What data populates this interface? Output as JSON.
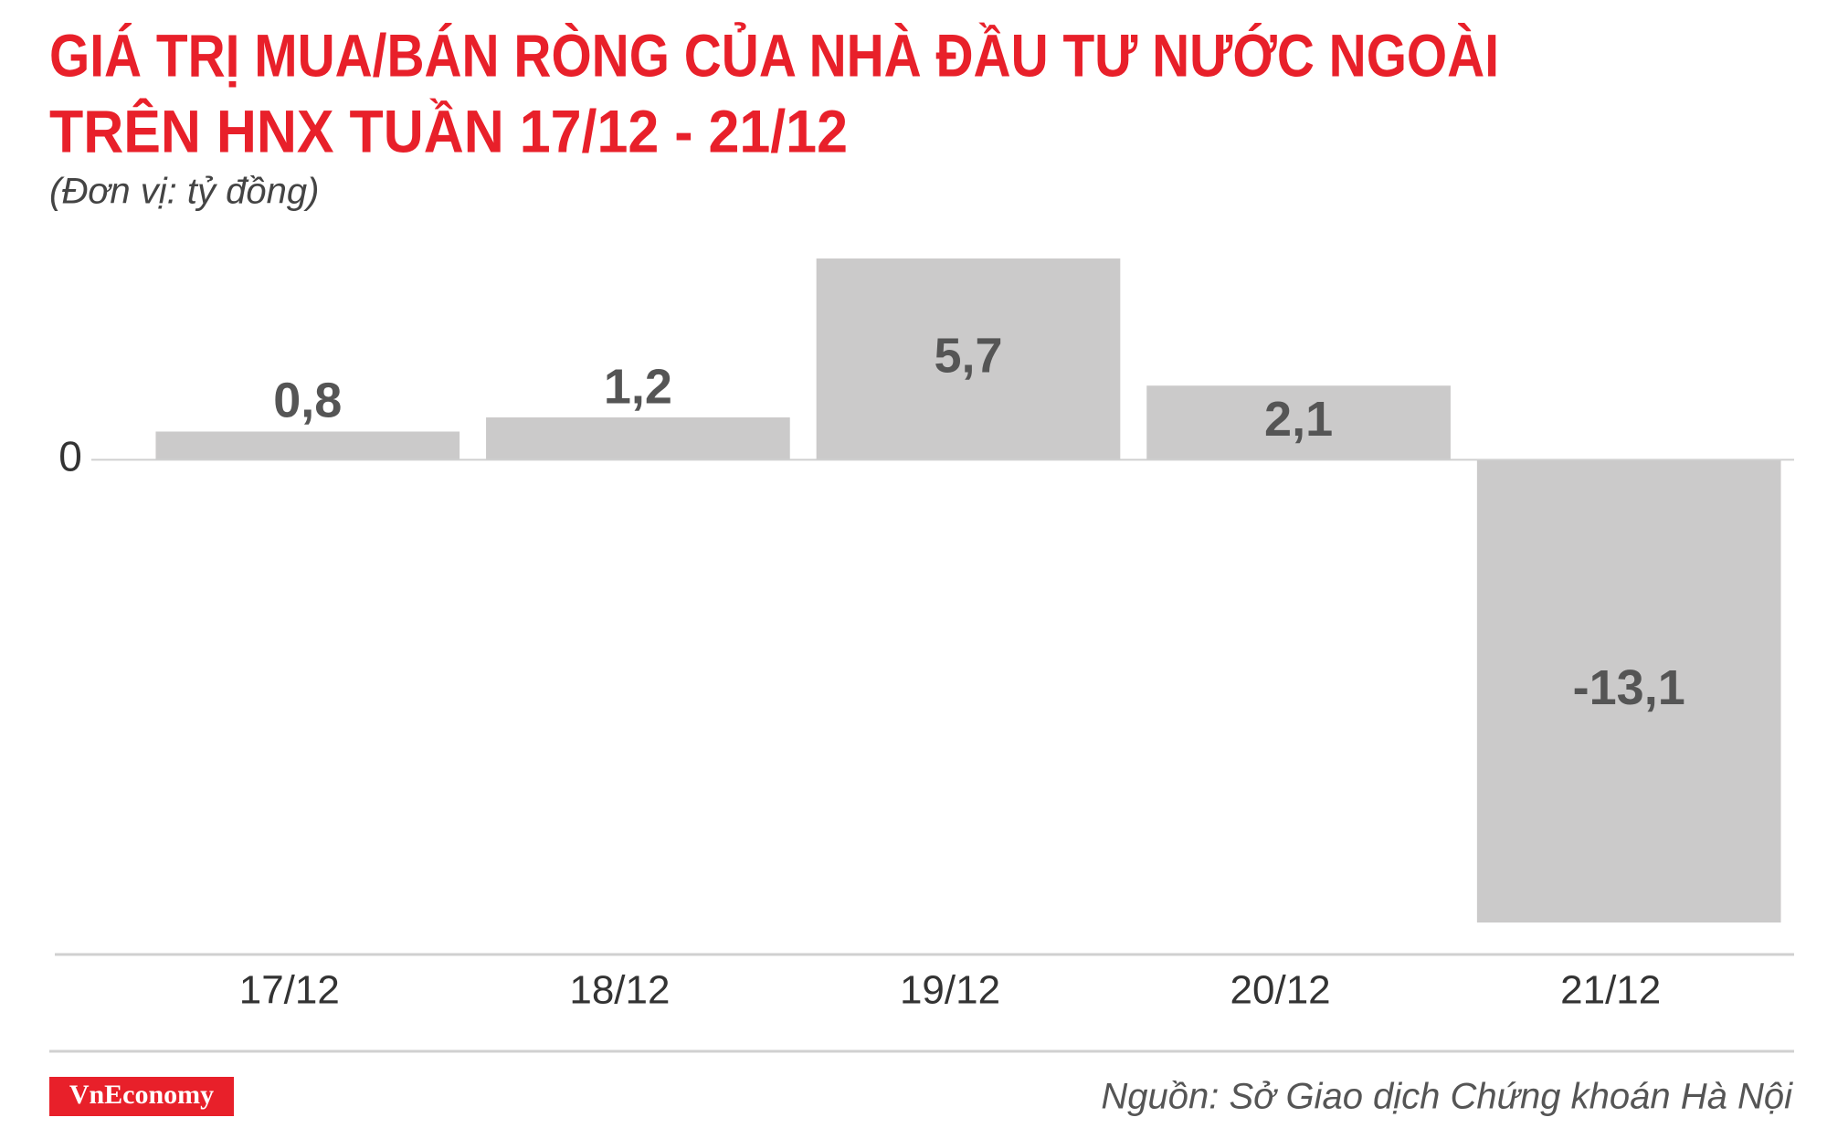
{
  "chart_data": {
    "type": "bar",
    "title": [
      "GIÁ TRỊ MUA/BÁN RÒNG CỦA NHÀ ĐẦU TƯ NƯỚC NGOÀI",
      "TRÊN HNX TUẦN 17/12 - 21/12"
    ],
    "subtitle": "(Đơn vị: tỷ đồng)",
    "categories": [
      "17/12",
      "18/12",
      "19/12",
      "20/12",
      "21/12"
    ],
    "values": [
      0.8,
      1.2,
      5.7,
      2.1,
      -13.1
    ],
    "value_labels": [
      "0,8",
      "1,2",
      "5,7",
      "2,1",
      "-13,1"
    ],
    "color": "#cbcaca",
    "ylim": [
      -13.1,
      5.7
    ],
    "yticks": [
      0
    ],
    "source": "Nguồn: Sở Giao dịch Chứng khoán Hà Nội",
    "logo": "VnEconomy"
  }
}
